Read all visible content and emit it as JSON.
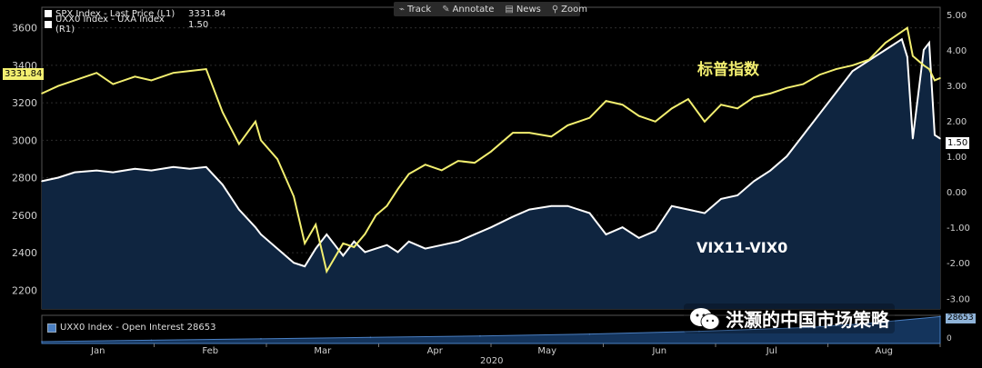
{
  "toolbar": {
    "items": [
      "Track",
      "Annotate",
      "News",
      "Zoom"
    ]
  },
  "legend": {
    "spx": {
      "name": "SPX Index - Last Price (L1)",
      "value": "3331.84"
    },
    "uxa": {
      "name": "UXX0 Index - UXA Index (R1)",
      "value": "1.50"
    }
  },
  "badges": {
    "spx_last": "3331.84",
    "uxa_last": "1.50",
    "oi_last": "28653"
  },
  "annotations": {
    "spx": "标普指数",
    "spread": "VIX11-VIX0"
  },
  "lower_panel": {
    "legend": "UXX0 Index - Open Interest 28653"
  },
  "watermark": "洪灏的中国市场策略",
  "year_label": "2020",
  "colors": {
    "spx": "#f3ef70",
    "spread_line": "#ffffff",
    "spread_fill": "#0f2540",
    "background": "#000000"
  },
  "chart_data": {
    "type": "line",
    "x_labels": [
      "Jan",
      "Feb",
      "Mar",
      "Apr",
      "May",
      "Jun",
      "Jul",
      "Aug"
    ],
    "x_range": [
      0,
      164
    ],
    "left_axis": {
      "ticks": [
        2200,
        2400,
        2600,
        2800,
        3000,
        3200,
        3400,
        3600
      ],
      "range": [
        2100,
        3710
      ]
    },
    "right_axis": {
      "ticks": [
        "-3.00",
        "-2.00",
        "-1.00",
        "0.00",
        "1.00",
        "2.00",
        "3.00",
        "4.00",
        "5.00"
      ],
      "range": [
        -3.3,
        5.2
      ]
    },
    "series": [
      {
        "name": "SPX Index - Last Price",
        "axis": "left",
        "color": "#f3ef70",
        "x": [
          0,
          3,
          6,
          10,
          13,
          17,
          20,
          24,
          27,
          30,
          33,
          36,
          39,
          40,
          43,
          46,
          48,
          50,
          52,
          55,
          57,
          59,
          61,
          63,
          65,
          67,
          70,
          73,
          76,
          79,
          82,
          86,
          89,
          93,
          96,
          100,
          103,
          106,
          109,
          112,
          115,
          118,
          121,
          124,
          127,
          130,
          133,
          136,
          139,
          142,
          145,
          148,
          151,
          154,
          157,
          158,
          159,
          161,
          162,
          163,
          164
        ],
        "y": [
          3250,
          3290,
          3320,
          3360,
          3300,
          3340,
          3320,
          3360,
          3370,
          3380,
          3150,
          2980,
          3100,
          3000,
          2900,
          2700,
          2450,
          2550,
          2300,
          2450,
          2430,
          2500,
          2600,
          2650,
          2740,
          2820,
          2870,
          2840,
          2890,
          2880,
          2940,
          3040,
          3040,
          3020,
          3080,
          3120,
          3210,
          3190,
          3130,
          3100,
          3170,
          3220,
          3100,
          3190,
          3170,
          3230,
          3250,
          3280,
          3300,
          3350,
          3380,
          3400,
          3430,
          3520,
          3580,
          3600,
          3450,
          3400,
          3380,
          3320,
          3331.84
        ]
      },
      {
        "name": "UXX0 Index - UXA Index",
        "axis": "right",
        "color": "#ffffff",
        "x": [
          0,
          3,
          6,
          10,
          13,
          17,
          20,
          24,
          27,
          30,
          33,
          36,
          39,
          40,
          43,
          46,
          48,
          50,
          52,
          55,
          57,
          59,
          61,
          63,
          65,
          67,
          70,
          73,
          76,
          79,
          82,
          86,
          89,
          93,
          96,
          100,
          103,
          106,
          109,
          112,
          115,
          118,
          121,
          124,
          127,
          130,
          133,
          136,
          139,
          142,
          145,
          148,
          151,
          154,
          157,
          158,
          159,
          161,
          162,
          163,
          164
        ],
        "y": [
          0.3,
          0.4,
          0.55,
          0.6,
          0.55,
          0.65,
          0.6,
          0.7,
          0.65,
          0.7,
          0.2,
          -0.5,
          -1.0,
          -1.2,
          -1.6,
          -2.0,
          -2.1,
          -1.6,
          -1.2,
          -1.8,
          -1.4,
          -1.7,
          -1.6,
          -1.5,
          -1.7,
          -1.4,
          -1.6,
          -1.5,
          -1.4,
          -1.2,
          -1.0,
          -0.7,
          -0.5,
          -0.4,
          -0.4,
          -0.6,
          -1.2,
          -1.0,
          -1.3,
          -1.1,
          -0.4,
          -0.5,
          -0.6,
          -0.2,
          -0.1,
          0.3,
          0.6,
          1.0,
          1.6,
          2.2,
          2.8,
          3.4,
          3.7,
          4.0,
          4.3,
          3.8,
          1.5,
          4.0,
          4.2,
          1.6,
          1.5
        ]
      },
      {
        "name": "UXX0 Index - Open Interest",
        "axis": "lower",
        "color": "#4a7fc2",
        "x": [
          0,
          20,
          40,
          60,
          80,
          100,
          120,
          140,
          150,
          164
        ],
        "y": [
          2000,
          3500,
          5000,
          6500,
          8000,
          10000,
          13000,
          17000,
          21000,
          28653
        ]
      }
    ]
  }
}
